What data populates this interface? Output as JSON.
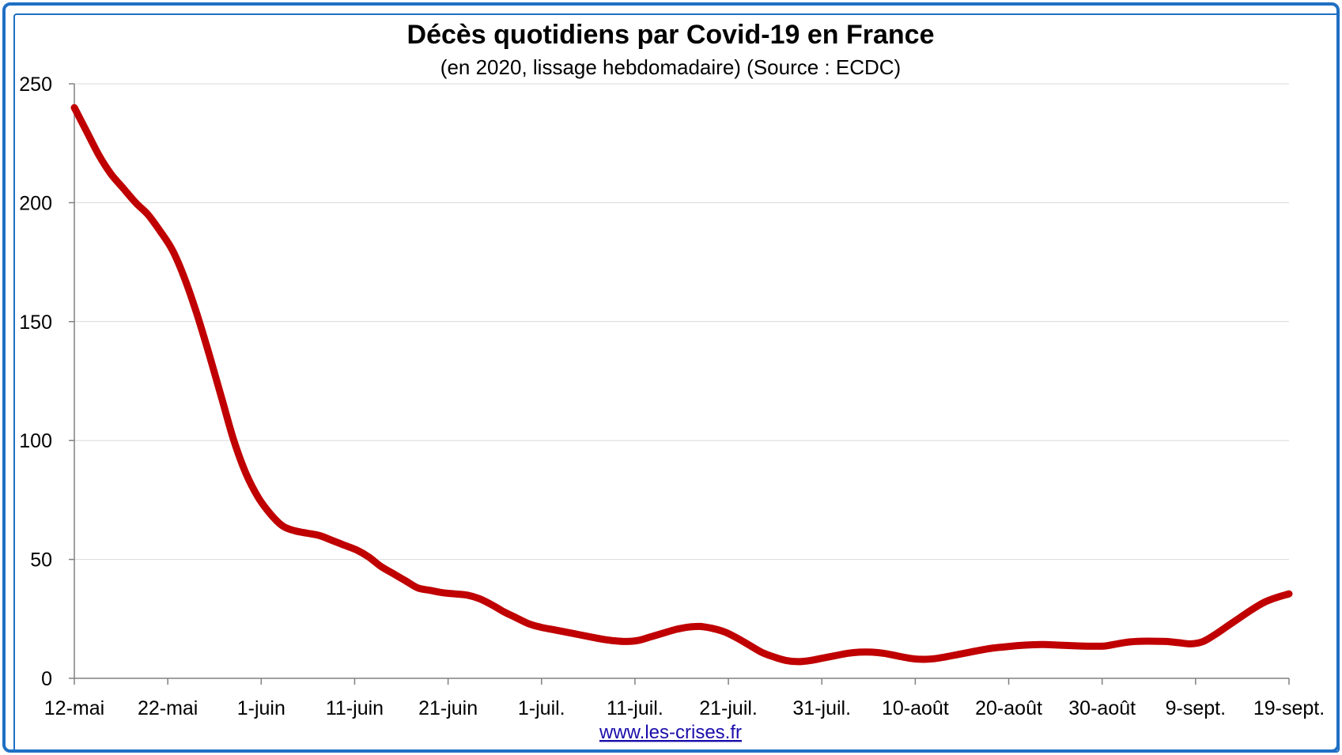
{
  "chart_data": {
    "type": "line",
    "title": "Décès quotidiens par Covid-19 en France",
    "subtitle": "(en 2020, lissage hebdomadaire) (Source : ECDC)",
    "xlabel": "",
    "ylabel": "",
    "ylim": [
      0,
      250
    ],
    "yticks": [
      0,
      50,
      100,
      150,
      200,
      250
    ],
    "xticks": [
      "12-mai",
      "22-mai",
      "1-juin",
      "11-juin",
      "21-juin",
      "1-juil.",
      "11-juil.",
      "21-juil.",
      "31-juil.",
      "10-août",
      "20-août",
      "30-août",
      "9-sept.",
      "19-sept."
    ],
    "grid": "horizontal",
    "line_color": "#c00000",
    "source_link": "www.les-crises.fr",
    "series": [
      {
        "values": [
          240,
          230,
          220,
          212,
          206,
          200,
          195,
          188,
          180,
          168,
          153,
          136,
          118,
          100,
          86,
          76,
          69,
          64,
          62,
          61,
          60,
          58,
          56,
          54,
          51,
          47,
          44,
          41,
          38,
          37,
          36,
          35.5,
          35,
          33.5,
          31,
          28,
          25.5,
          23,
          21.5,
          20.5,
          19.5,
          18.5,
          17.5,
          16.5,
          15.8,
          15.5,
          16,
          17.5,
          19,
          20.5,
          21.5,
          21.8,
          21,
          19.5,
          17,
          14,
          11,
          9,
          7.5,
          7,
          7.5,
          8.5,
          9.5,
          10.5,
          11,
          11,
          10.5,
          9.5,
          8.5,
          8,
          8.2,
          9,
          10,
          11,
          12,
          12.8,
          13.3,
          13.8,
          14.1,
          14.2,
          14,
          13.8,
          13.6,
          13.5,
          13.6,
          14.5,
          15.3,
          15.6,
          15.6,
          15.5,
          15,
          14.5,
          15.5,
          18.5,
          22,
          25.5,
          29,
          32,
          34,
          35.5
        ],
        "start_day": 0
      }
    ]
  }
}
